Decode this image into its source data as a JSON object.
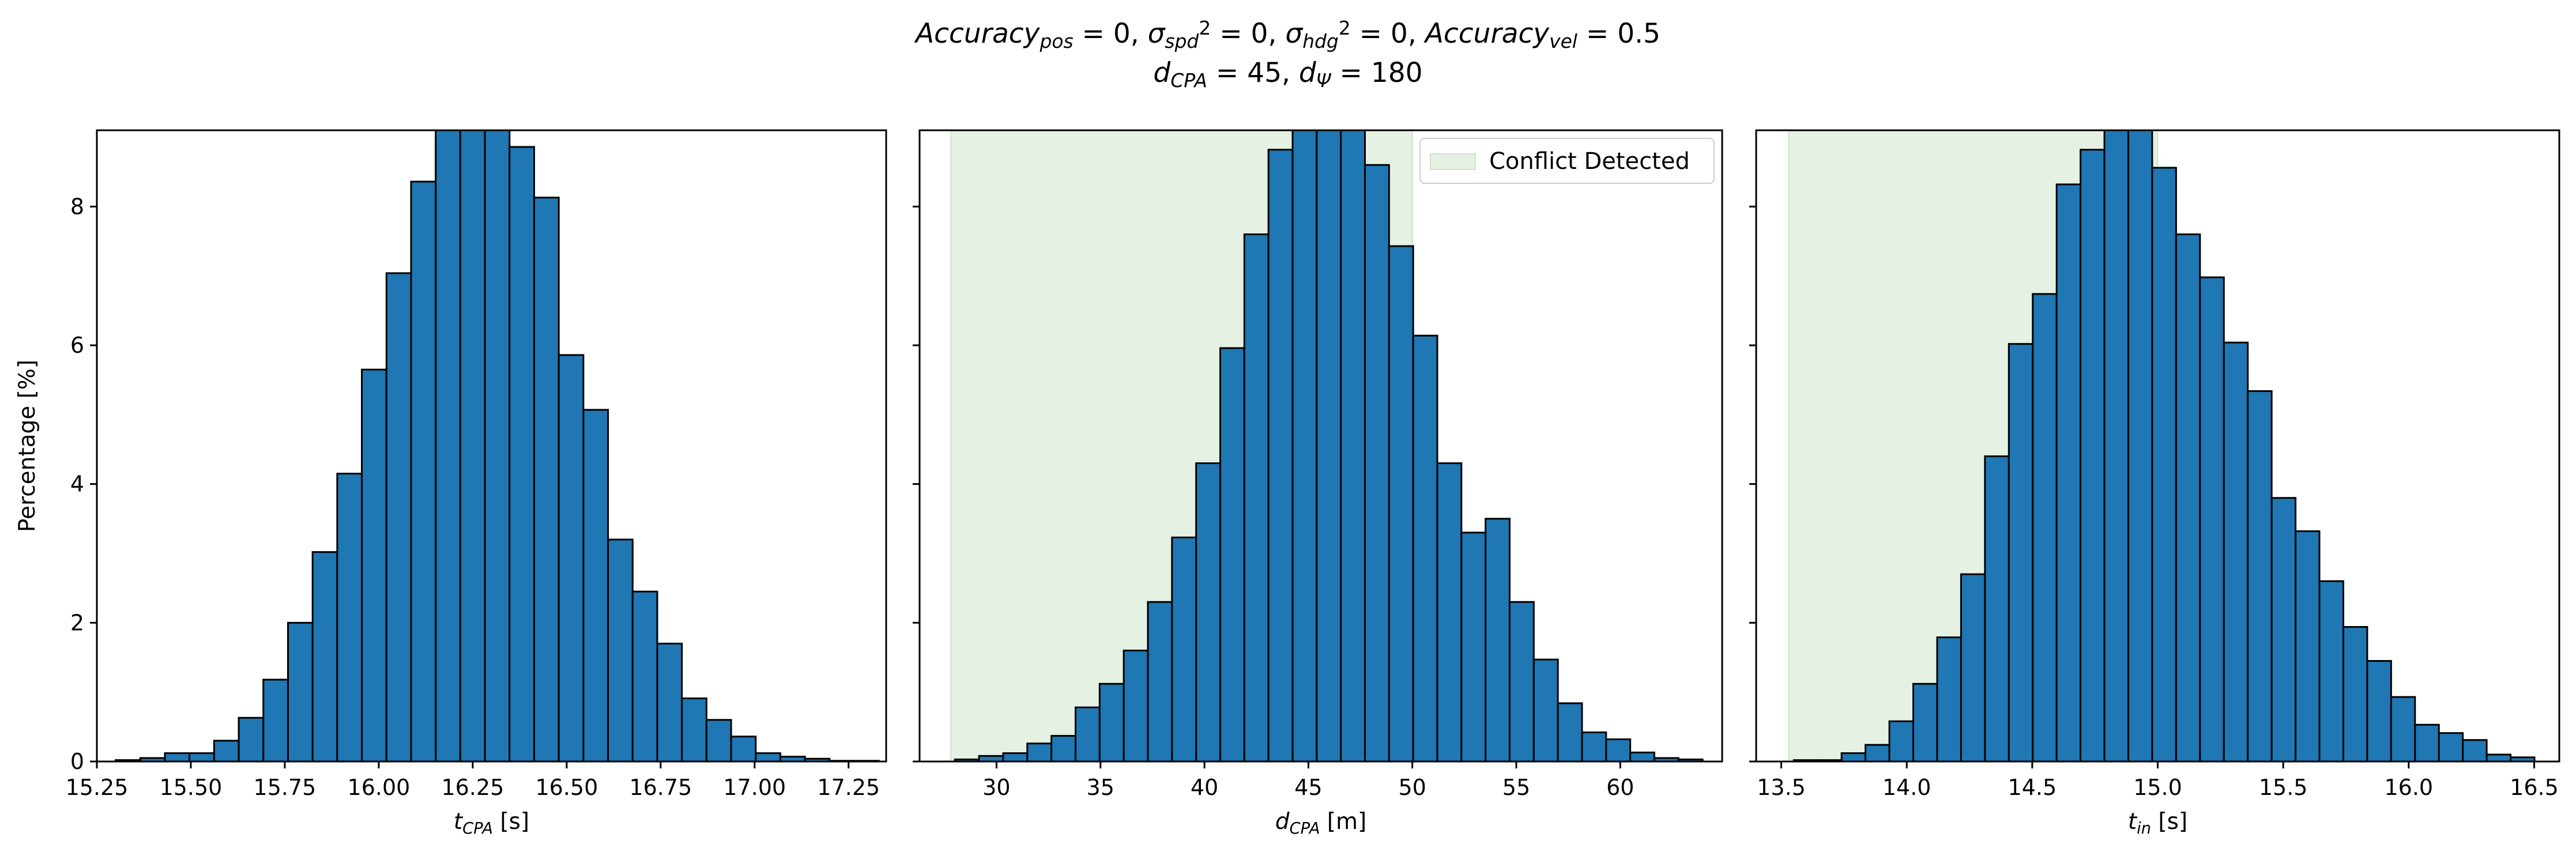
{
  "title": {
    "line1_parts": [
      {
        "t": "Accuracy",
        "s": "italic"
      },
      {
        "t": "pos",
        "s": "sub"
      },
      {
        "t": " = 0, ",
        "s": "normal"
      },
      {
        "t": "σ",
        "s": "italic"
      },
      {
        "t": "spd",
        "s": "sub"
      },
      {
        "t": "2",
        "s": "sup"
      },
      {
        "t": " = 0, ",
        "s": "normal"
      },
      {
        "t": "σ",
        "s": "italic"
      },
      {
        "t": "hdg",
        "s": "sub"
      },
      {
        "t": "2",
        "s": "sup"
      },
      {
        "t": " = 0, ",
        "s": "normal"
      },
      {
        "t": "Accuracy",
        "s": "italic"
      },
      {
        "t": "vel",
        "s": "sub"
      },
      {
        "t": " = 0.5",
        "s": "normal"
      }
    ],
    "line2_parts": [
      {
        "t": "d",
        "s": "italic"
      },
      {
        "t": "CPA",
        "s": "sub"
      },
      {
        "t": " = 45, ",
        "s": "normal"
      },
      {
        "t": "d",
        "s": "italic"
      },
      {
        "t": "Ψ",
        "s": "sub"
      },
      {
        "t": " = 180",
        "s": "normal"
      }
    ]
  },
  "colors": {
    "bar_fill": "#1f77b4",
    "bar_edge": "#000000",
    "conflict_fill": "#e5f1e3",
    "conflict_edge": "#cde3c9"
  },
  "chart_data": [
    {
      "type": "bar",
      "subtype": "histogram",
      "xlim": [
        15.25,
        17.35
      ],
      "ylim": [
        0,
        9.1
      ],
      "xticks": [
        15.25,
        15.5,
        15.75,
        16.0,
        16.25,
        16.5,
        16.75,
        17.0,
        17.25
      ],
      "xtick_labels": [
        "15.25",
        "15.50",
        "15.75",
        "16.00",
        "16.25",
        "16.50",
        "16.75",
        "17.00",
        "17.25"
      ],
      "yticks": [
        0,
        2,
        4,
        6,
        8
      ],
      "ytick_labels": [
        "0",
        "2",
        "4",
        "6",
        "8"
      ],
      "xlabel_parts": [
        {
          "t": "t",
          "s": "italic"
        },
        {
          "t": "CPA",
          "s": "sub"
        },
        {
          "t": " [s]",
          "s": "normal"
        }
      ],
      "ylabel": "Percentage [%]",
      "bin_start": 15.3,
      "bin_width": 0.0655,
      "values": [
        0.02,
        0.05,
        0.12,
        0.12,
        0.3,
        0.63,
        1.18,
        2.0,
        3.02,
        4.15,
        5.65,
        7.04,
        8.36,
        9.5,
        9.4,
        9.1,
        8.86,
        8.13,
        5.86,
        5.07,
        3.2,
        2.45,
        1.7,
        0.91,
        0.6,
        0.36,
        0.12,
        0.07,
        0.04,
        0.01,
        0.01
      ],
      "shaded_region": null,
      "legend": null
    },
    {
      "type": "bar",
      "subtype": "histogram",
      "xlim": [
        26.3,
        64.9
      ],
      "ylim": [
        0,
        9.1
      ],
      "xticks": [
        30,
        35,
        40,
        45,
        50,
        55,
        60
      ],
      "xtick_labels": [
        "30",
        "35",
        "40",
        "45",
        "50",
        "55",
        "60"
      ],
      "yticks": [
        0,
        2,
        4,
        6,
        8
      ],
      "ytick_labels": [
        "",
        "",
        "",
        "",
        ""
      ],
      "xlabel_parts": [
        {
          "t": "d",
          "s": "italic"
        },
        {
          "t": "CPA",
          "s": "sub"
        },
        {
          "t": " [m]",
          "s": "normal"
        }
      ],
      "ylabel": "",
      "bin_start": 28.0,
      "bin_width": 1.16,
      "values": [
        0.03,
        0.08,
        0.12,
        0.26,
        0.37,
        0.78,
        1.12,
        1.6,
        2.3,
        3.23,
        4.3,
        5.96,
        7.6,
        8.82,
        9.3,
        9.3,
        9.2,
        8.6,
        7.43,
        6.14,
        4.3,
        3.3,
        3.5,
        2.3,
        1.47,
        0.84,
        0.42,
        0.32,
        0.13,
        0.05,
        0.03
      ],
      "shaded_region": [
        27.8,
        50.0
      ],
      "legend": {
        "label": "Conflict Detected",
        "position": "top-right"
      }
    },
    {
      "type": "bar",
      "subtype": "histogram",
      "xlim": [
        13.4,
        16.6
      ],
      "ylim": [
        0,
        9.1
      ],
      "xticks": [
        13.5,
        14.0,
        14.5,
        15.0,
        15.5,
        16.0,
        16.5
      ],
      "xtick_labels": [
        "13.5",
        "14.0",
        "14.5",
        "15.0",
        "15.5",
        "16.0",
        "16.5"
      ],
      "yticks": [
        0,
        2,
        4,
        6,
        8
      ],
      "ytick_labels": [
        "",
        "",
        "",
        "",
        ""
      ],
      "xlabel_parts": [
        {
          "t": "t",
          "s": "italic"
        },
        {
          "t": "in",
          "s": "sub"
        },
        {
          "t": " [s]",
          "s": "normal"
        }
      ],
      "ylabel": "",
      "bin_start": 13.55,
      "bin_width": 0.0952,
      "values": [
        0.02,
        0.02,
        0.12,
        0.24,
        0.58,
        1.12,
        1.79,
        2.7,
        4.4,
        6.02,
        6.74,
        8.32,
        8.82,
        9.18,
        9.12,
        8.56,
        7.6,
        6.98,
        6.04,
        5.34,
        3.8,
        3.32,
        2.6,
        1.94,
        1.45,
        0.93,
        0.53,
        0.41,
        0.31,
        0.1,
        0.06
      ],
      "shaded_region": [
        13.53,
        15.0
      ],
      "legend": null
    }
  ]
}
